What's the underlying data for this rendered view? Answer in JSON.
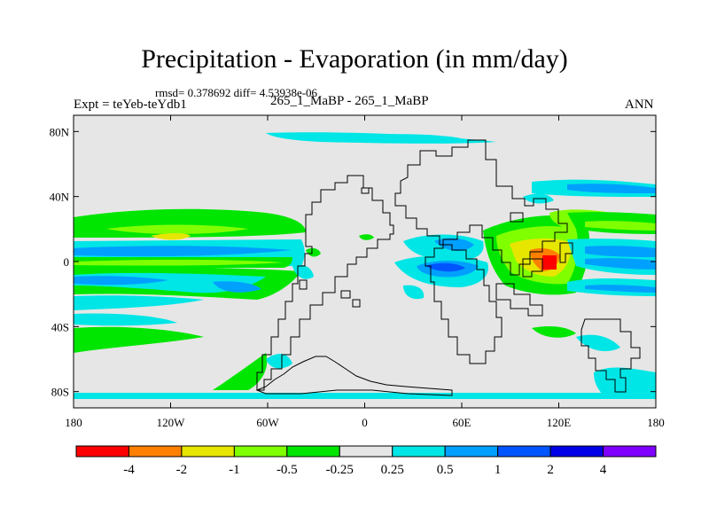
{
  "header": {
    "title": "Precipitation - Evaporation (in mm/day)",
    "stats": "rmsd= 0.378692 diff= 4.53938e-06",
    "experiment": "Expt = teYeb-teYdb1",
    "runs": "265_1_MaBP - 265_1_MaBP",
    "season": "ANN"
  },
  "axes": {
    "lon_ticks": [
      "180",
      "120W",
      "60W",
      "0",
      "60E",
      "120E",
      "180"
    ],
    "lat_ticks": [
      "80N",
      "40N",
      "0",
      "40S",
      "80S"
    ]
  },
  "colorbar": {
    "colors": [
      "#ff0000",
      "#ff8000",
      "#e6e600",
      "#80ff00",
      "#00e600",
      "#e6e6e6",
      "#00e6e6",
      "#00a0ff",
      "#0055ff",
      "#0000e6",
      "#8000ff"
    ],
    "labels": [
      "-4",
      "-2",
      "-1",
      "-0.5",
      "-0.25",
      "0.25",
      "0.5",
      "1",
      "2",
      "4"
    ]
  },
  "palette": {
    "background": "#e6e6e6",
    "coast": "#000000"
  }
}
